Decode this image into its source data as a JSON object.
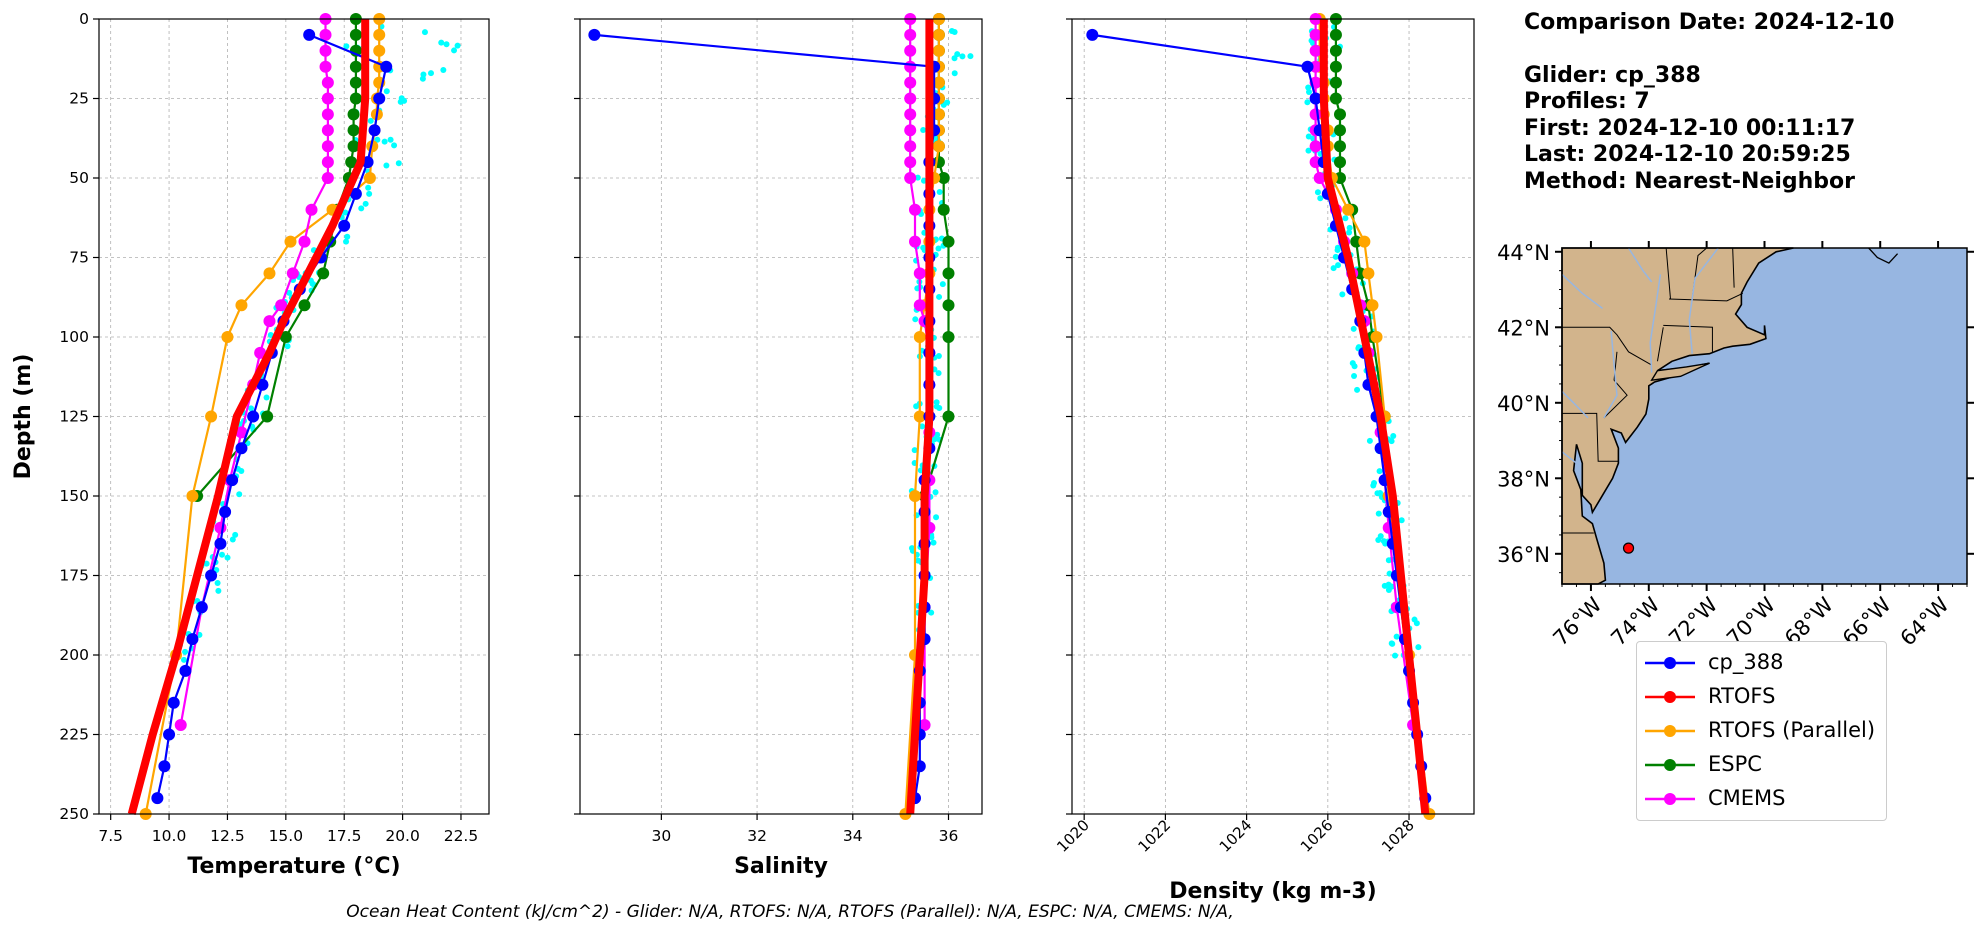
{
  "info": {
    "comparison": "Comparison Date: 2024-12-10",
    "glider": "Glider: cp_388",
    "profiles": "Profiles: 7",
    "first": "First: 2024-12-10 00:11:17",
    "last": "Last: 2024-12-10 20:59:25",
    "method": "Method: Nearest-Neighbor"
  },
  "footer": "Ocean Heat Content (kJ/cm^2) - Glider: N/A,  RTOFS: N/A,  RTOFS (Parallel): N/A,  ESPC: N/A,  CMEMS: N/A,",
  "colors": {
    "glider": "#0000ff",
    "rtofs": "#ff0000",
    "rtofs_parallel": "#ffa500",
    "espc": "#008000",
    "cmems": "#ff00ff",
    "glider_raw": "#00ffff",
    "land": "#d2b48c",
    "ocean": "#97b6e1",
    "rivers": "#97b6e1"
  },
  "legend": [
    {
      "label": "cp_388",
      "color": "#0000ff"
    },
    {
      "label": "RTOFS",
      "color": "#ff0000"
    },
    {
      "label": "RTOFS (Parallel)",
      "color": "#ffa500"
    },
    {
      "label": "ESPC",
      "color": "#008000"
    },
    {
      "label": "CMEMS",
      "color": "#ff00ff"
    }
  ],
  "chart_data": [
    {
      "type": "line",
      "id": "temperature",
      "xlabel": "Temperature (°C)",
      "ylabel": "Depth (m)",
      "xlim": [
        7.0,
        23.7
      ],
      "ylim": [
        250,
        0
      ],
      "xticks": [
        "7.5",
        "10.0",
        "12.5",
        "15.0",
        "17.5",
        "20.0",
        "22.5"
      ],
      "yticks": [
        "0",
        "25",
        "50",
        "75",
        "100",
        "125",
        "150",
        "175",
        "200",
        "225",
        "250"
      ],
      "grid": true,
      "series": [
        {
          "name": "cp_388",
          "key": "glider",
          "depth": [
            5,
            15,
            25,
            35,
            45,
            55,
            65,
            75,
            85,
            95,
            105,
            115,
            125,
            135,
            145,
            155,
            165,
            175,
            185,
            195,
            205,
            215,
            225,
            235,
            245
          ],
          "values": [
            16.0,
            19.3,
            19.0,
            18.8,
            18.5,
            18.0,
            17.5,
            16.5,
            15.6,
            14.9,
            14.4,
            14.0,
            13.6,
            13.1,
            12.7,
            12.4,
            12.2,
            11.8,
            11.4,
            11.0,
            10.7,
            10.2,
            10.0,
            9.8,
            9.5
          ]
        },
        {
          "name": "RTOFS",
          "key": "rtofs",
          "depth": [
            0,
            5,
            15,
            25,
            35,
            45,
            55,
            65,
            75,
            85,
            95,
            105,
            115,
            125,
            150,
            175,
            200,
            225,
            250
          ],
          "values": [
            18.4,
            18.4,
            18.4,
            18.4,
            18.3,
            18.2,
            17.6,
            17.0,
            16.3,
            15.6,
            14.9,
            14.3,
            13.6,
            12.9,
            12.1,
            11.2,
            10.3,
            9.3,
            8.4
          ]
        },
        {
          "name": "RTOFS (Parallel)",
          "key": "rtofs_parallel",
          "depth": [
            0,
            5,
            10,
            15,
            20,
            25,
            30,
            35,
            40,
            50,
            60,
            70,
            80,
            90,
            100,
            125,
            150,
            200,
            250
          ],
          "values": [
            19.0,
            19.0,
            19.0,
            19.0,
            19.0,
            18.9,
            18.9,
            18.8,
            18.7,
            18.6,
            17.0,
            15.2,
            14.3,
            13.1,
            12.5,
            11.8,
            11.0,
            10.3,
            9.0
          ]
        },
        {
          "name": "ESPC",
          "key": "espc",
          "depth": [
            0,
            5,
            10,
            15,
            20,
            25,
            30,
            35,
            40,
            45,
            50,
            60,
            70,
            80,
            90,
            100,
            125,
            150
          ],
          "values": [
            18.0,
            18.0,
            18.0,
            18.0,
            18.0,
            18.0,
            17.9,
            17.9,
            17.9,
            17.8,
            17.7,
            17.2,
            16.9,
            16.6,
            15.8,
            15.0,
            14.2,
            11.2
          ]
        },
        {
          "name": "CMEMS",
          "key": "cmems",
          "depth": [
            0,
            5,
            10,
            15,
            20,
            25,
            30,
            35,
            40,
            45,
            50,
            60,
            70,
            80,
            90,
            95,
            105,
            115,
            130,
            145,
            160,
            185,
            222
          ],
          "values": [
            16.7,
            16.7,
            16.7,
            16.7,
            16.8,
            16.8,
            16.8,
            16.8,
            16.8,
            16.8,
            16.8,
            16.1,
            15.8,
            15.3,
            14.8,
            14.3,
            13.9,
            13.6,
            13.1,
            12.6,
            12.2,
            11.4,
            10.5
          ]
        }
      ]
    },
    {
      "type": "line",
      "id": "salinity",
      "xlabel": "Salinity",
      "xlim": [
        28.3,
        36.7
      ],
      "ylim": [
        250,
        0
      ],
      "xticks": [
        "30",
        "32",
        "34",
        "36"
      ],
      "grid": true,
      "series": [
        {
          "name": "cp_388",
          "key": "glider",
          "depth": [
            5,
            15,
            25,
            35,
            45,
            55,
            65,
            75,
            85,
            95,
            105,
            115,
            125,
            135,
            145,
            155,
            165,
            175,
            185,
            195,
            205,
            215,
            225,
            235,
            245
          ],
          "values": [
            28.6,
            35.7,
            35.7,
            35.7,
            35.6,
            35.6,
            35.6,
            35.6,
            35.6,
            35.6,
            35.6,
            35.6,
            35.6,
            35.6,
            35.5,
            35.5,
            35.5,
            35.5,
            35.5,
            35.5,
            35.4,
            35.4,
            35.4,
            35.4,
            35.3
          ]
        },
        {
          "name": "RTOFS",
          "key": "rtofs",
          "depth": [
            0,
            25,
            50,
            75,
            100,
            125,
            150,
            175,
            200,
            225,
            250
          ],
          "values": [
            35.6,
            35.6,
            35.6,
            35.6,
            35.6,
            35.6,
            35.5,
            35.5,
            35.4,
            35.3,
            35.2
          ]
        },
        {
          "name": "RTOFS (Parallel)",
          "key": "rtofs_parallel",
          "depth": [
            0,
            5,
            10,
            15,
            20,
            25,
            30,
            35,
            40,
            50,
            60,
            70,
            80,
            90,
            100,
            125,
            150,
            200,
            250
          ],
          "values": [
            35.8,
            35.8,
            35.8,
            35.8,
            35.8,
            35.8,
            35.8,
            35.8,
            35.8,
            35.7,
            35.6,
            35.6,
            35.6,
            35.5,
            35.4,
            35.4,
            35.3,
            35.3,
            35.1
          ]
        },
        {
          "name": "ESPC",
          "key": "espc",
          "depth": [
            0,
            5,
            10,
            15,
            20,
            25,
            30,
            35,
            40,
            45,
            50,
            60,
            70,
            80,
            90,
            100,
            125,
            150
          ],
          "values": [
            35.8,
            35.8,
            35.8,
            35.8,
            35.8,
            35.8,
            35.8,
            35.8,
            35.8,
            35.8,
            35.9,
            35.9,
            36.0,
            36.0,
            36.0,
            36.0,
            36.0,
            35.5
          ]
        },
        {
          "name": "CMEMS",
          "key": "cmems",
          "depth": [
            0,
            5,
            10,
            15,
            20,
            25,
            30,
            35,
            40,
            45,
            50,
            60,
            70,
            80,
            90,
            95,
            105,
            115,
            130,
            145,
            160,
            185,
            222
          ],
          "values": [
            35.2,
            35.2,
            35.2,
            35.2,
            35.2,
            35.2,
            35.2,
            35.2,
            35.2,
            35.2,
            35.2,
            35.3,
            35.3,
            35.4,
            35.4,
            35.5,
            35.6,
            35.6,
            35.6,
            35.6,
            35.6,
            35.5,
            35.5
          ]
        }
      ]
    },
    {
      "type": "line",
      "id": "density",
      "xlabel": "Density (kg m-3)",
      "xlim": [
        1019.7,
        1029.6
      ],
      "ylim": [
        250,
        0
      ],
      "xticks": [
        "1020",
        "1022",
        "1024",
        "1026",
        "1028"
      ],
      "grid": true,
      "series": [
        {
          "name": "cp_388",
          "key": "glider",
          "depth": [
            5,
            15,
            25,
            35,
            45,
            55,
            65,
            75,
            85,
            95,
            105,
            115,
            125,
            135,
            145,
            155,
            165,
            175,
            185,
            195,
            205,
            215,
            225,
            235,
            245
          ],
          "values": [
            1020.2,
            1025.5,
            1025.7,
            1025.8,
            1025.9,
            1026.0,
            1026.2,
            1026.4,
            1026.6,
            1026.8,
            1026.9,
            1027.0,
            1027.2,
            1027.3,
            1027.4,
            1027.5,
            1027.6,
            1027.7,
            1027.8,
            1027.9,
            1028.0,
            1028.1,
            1028.2,
            1028.3,
            1028.4
          ]
        },
        {
          "name": "RTOFS",
          "key": "rtofs",
          "depth": [
            0,
            25,
            50,
            75,
            100,
            125,
            150,
            175,
            200,
            225,
            250
          ],
          "values": [
            1025.9,
            1025.9,
            1026.0,
            1026.5,
            1026.9,
            1027.3,
            1027.6,
            1027.8,
            1028.0,
            1028.2,
            1028.4
          ]
        },
        {
          "name": "RTOFS (Parallel)",
          "key": "rtofs_parallel",
          "depth": [
            0,
            5,
            10,
            15,
            20,
            25,
            30,
            35,
            40,
            50,
            60,
            70,
            80,
            90,
            100,
            125,
            150,
            200,
            250
          ],
          "values": [
            1025.8,
            1025.8,
            1025.8,
            1025.8,
            1025.9,
            1025.9,
            1025.9,
            1026.0,
            1026.0,
            1026.1,
            1026.5,
            1026.9,
            1027.0,
            1027.1,
            1027.2,
            1027.4,
            1027.5,
            1028.0,
            1028.5
          ]
        },
        {
          "name": "ESPC",
          "key": "espc",
          "depth": [
            0,
            5,
            10,
            15,
            20,
            25,
            30,
            35,
            40,
            45,
            50,
            60,
            70,
            80,
            90,
            100,
            125,
            150
          ],
          "values": [
            1026.2,
            1026.2,
            1026.2,
            1026.2,
            1026.2,
            1026.2,
            1026.3,
            1026.3,
            1026.3,
            1026.3,
            1026.3,
            1026.6,
            1026.7,
            1026.8,
            1027.0,
            1027.1,
            1027.4,
            1027.5
          ]
        },
        {
          "name": "CMEMS",
          "key": "cmems",
          "depth": [
            0,
            5,
            10,
            15,
            20,
            25,
            30,
            35,
            40,
            45,
            50,
            60,
            70,
            80,
            90,
            95,
            105,
            115,
            130,
            145,
            160,
            185,
            222
          ],
          "values": [
            1025.7,
            1025.7,
            1025.7,
            1025.7,
            1025.7,
            1025.7,
            1025.7,
            1025.7,
            1025.7,
            1025.7,
            1025.8,
            1026.2,
            1026.4,
            1026.6,
            1026.8,
            1026.9,
            1027.0,
            1027.1,
            1027.3,
            1027.4,
            1027.5,
            1027.7,
            1028.1
          ]
        }
      ]
    }
  ],
  "map": {
    "lat_ticks": [
      "44°N",
      "42°N",
      "40°N",
      "38°N",
      "36°N"
    ],
    "lat_values": [
      44,
      42,
      40,
      38,
      36
    ],
    "lon_ticks": [
      "76°W",
      "74°W",
      "72°W",
      "70°W",
      "68°W",
      "66°W",
      "64°W"
    ],
    "lon_values": [
      -76,
      -74,
      -72,
      -70,
      -68,
      -66,
      -64
    ],
    "extent": {
      "lon": [
        -77,
        -63
      ],
      "lat": [
        35.2,
        44.1
      ]
    },
    "glider_position": {
      "lon": -74.7,
      "lat": 36.15
    }
  }
}
